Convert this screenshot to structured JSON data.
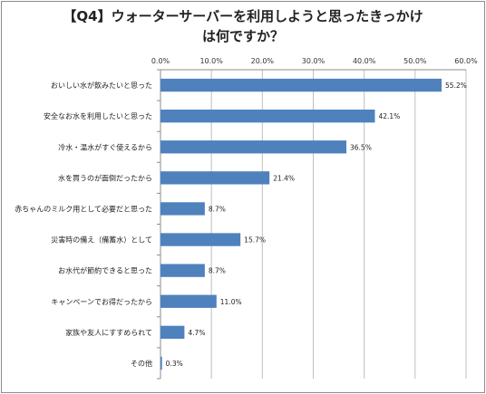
{
  "chart_data": {
    "type": "bar",
    "orientation": "horizontal",
    "title_line1": "【Q4】ウォーターサーバーを利用しようと思ったきっかけ",
    "title_line2": "は何ですか？",
    "categories": [
      "おいしい水が飲みたいと思った",
      "安全なお水を利用したいと思った",
      "冷水・温水がすぐ使えるから",
      "水を買うのが面倒だったから",
      "赤ちゃんのミルク用として必要だと思った",
      "災害時の備え（備蓄水）として",
      "お水代が節約できると思った",
      "キャンペーンでお得だったから",
      "家族や友人にすすめられて",
      "その他"
    ],
    "values": [
      55.2,
      42.1,
      36.5,
      21.4,
      8.7,
      15.7,
      8.7,
      11.0,
      4.7,
      0.3
    ],
    "value_labels": [
      "55.2%",
      "42.1%",
      "36.5%",
      "21.4%",
      "8.7%",
      "15.7%",
      "8.7%",
      "11.0%",
      "4.7%",
      "0.3%"
    ],
    "xlim": [
      0,
      60
    ],
    "x_ticks": [
      "0.0%",
      "10.0%",
      "20.0%",
      "30.0%",
      "40.0%",
      "50.0%",
      "60.0%"
    ],
    "x_axis_position": "top",
    "grid": true,
    "legend": "none",
    "bar_color": "#4f81bd"
  }
}
